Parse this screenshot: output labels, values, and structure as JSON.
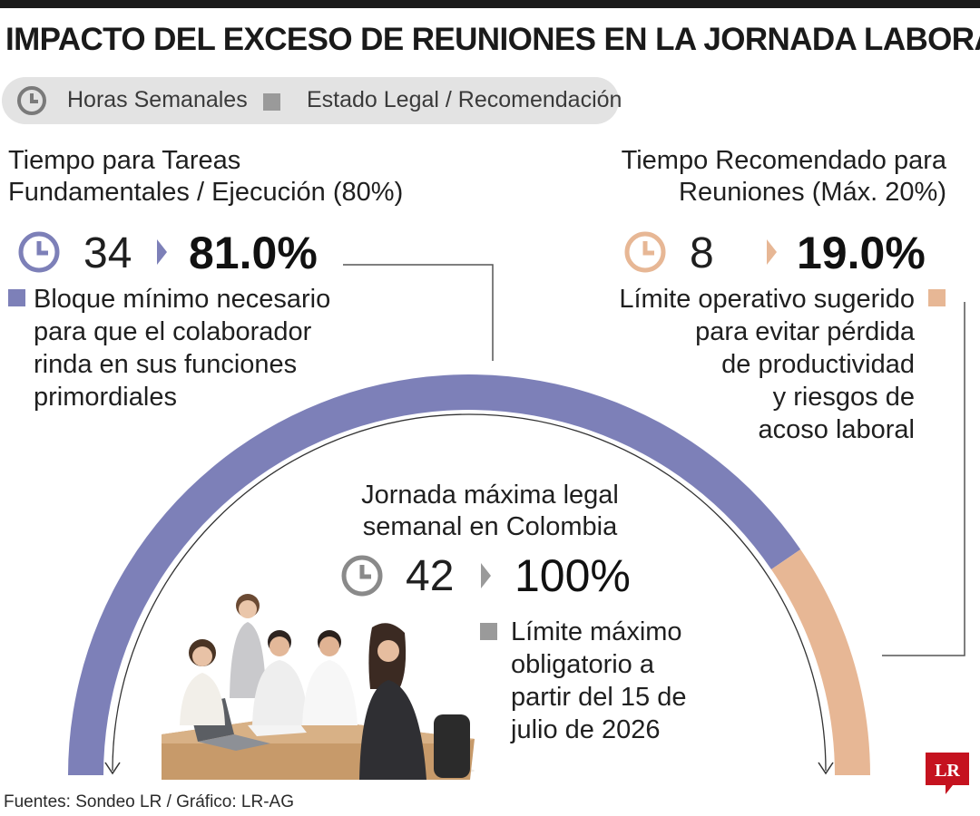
{
  "title": "IMPACTO DEL EXCESO DE REUNIONES EN LA JORNADA LABORAL",
  "legend": {
    "hours_icon": "clock-icon",
    "hours_label": "Horas Semanales",
    "status_label": "Estado Legal / Recomendación"
  },
  "colors": {
    "tasks": "#7d80b8",
    "meetings": "#e7b795",
    "legal": "#9a9a9a",
    "logo": "#c5121f"
  },
  "tasks": {
    "title_line1": "Tiempo para Tareas",
    "title_line2": "Fundamentales / Ejecución (80%)",
    "hours": "34",
    "percent": "81.0%",
    "desc_lines": [
      "Bloque mínimo necesario",
      "para que el colaborador",
      "rinda en sus funciones",
      "primordiales"
    ]
  },
  "meetings": {
    "title_line1": "Tiempo Recomendado para",
    "title_line2": "Reuniones (Máx. 20%)",
    "hours": "8",
    "percent": "19.0%",
    "desc_lines": [
      "Límite operativo sugerido",
      "para evitar pérdida",
      "de productividad",
      "y riesgos de",
      "acoso laboral"
    ]
  },
  "legal": {
    "title_line1": "Jornada máxima legal",
    "title_line2": "semanal en Colombia",
    "hours": "42",
    "percent": "100%",
    "desc_lines": [
      "Límite máximo",
      "obligatorio a",
      "partir del 15 de",
      "julio de 2026"
    ]
  },
  "source": "Fuentes: Sondeo LR / Gráfico: LR-AG",
  "logo_text": "LR",
  "chart_data": {
    "type": "pie",
    "style": "semicircle",
    "unit": "Horas Semanales",
    "total": 42,
    "slices": [
      {
        "label": "Tiempo para Tareas Fundamentales / Ejecución (80%)",
        "value": 34,
        "percent": 81.0
      },
      {
        "label": "Tiempo Recomendado para Reuniones (Máx. 20%)",
        "value": 8,
        "percent": 19.0
      }
    ]
  }
}
